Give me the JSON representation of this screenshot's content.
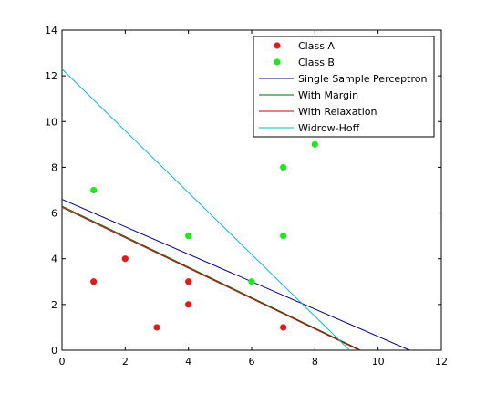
{
  "chart_data": {
    "type": "scatter",
    "title": "",
    "xlabel": "",
    "ylabel": "",
    "xlim": [
      0,
      12
    ],
    "ylim": [
      0,
      14
    ],
    "xticks": [
      0,
      2,
      4,
      6,
      8,
      10,
      12
    ],
    "yticks": [
      0,
      2,
      4,
      6,
      8,
      10,
      12,
      14
    ],
    "grid": false,
    "legend_position": "top-right",
    "series": [
      {
        "name": "Class A",
        "kind": "points",
        "color": "#e31a1c",
        "points": [
          [
            1,
            3
          ],
          [
            2,
            4
          ],
          [
            3,
            1
          ],
          [
            4,
            3
          ],
          [
            4,
            2
          ],
          [
            7,
            1
          ]
        ]
      },
      {
        "name": "Class B",
        "kind": "points",
        "color": "#1ee81e",
        "points": [
          [
            1,
            7
          ],
          [
            4,
            5
          ],
          [
            6,
            3
          ],
          [
            7,
            8
          ],
          [
            7,
            5
          ],
          [
            8,
            9
          ]
        ]
      },
      {
        "name": "Single Sample Perceptron",
        "kind": "line",
        "color": "#00008b",
        "points": [
          [
            0,
            6.6
          ],
          [
            11,
            0
          ]
        ]
      },
      {
        "name": "With Margin",
        "kind": "line",
        "color": "#006400",
        "points": [
          [
            0,
            6.3
          ],
          [
            9.45,
            0
          ]
        ]
      },
      {
        "name": "With Relaxation",
        "kind": "line",
        "color": "#cc0000",
        "points": [
          [
            0,
            6.25
          ],
          [
            9.4,
            0
          ]
        ]
      },
      {
        "name": "Widrow-Hoff",
        "kind": "line",
        "color": "#00bcd4",
        "points": [
          [
            0,
            12.3
          ],
          [
            9.1,
            0
          ]
        ]
      }
    ]
  }
}
